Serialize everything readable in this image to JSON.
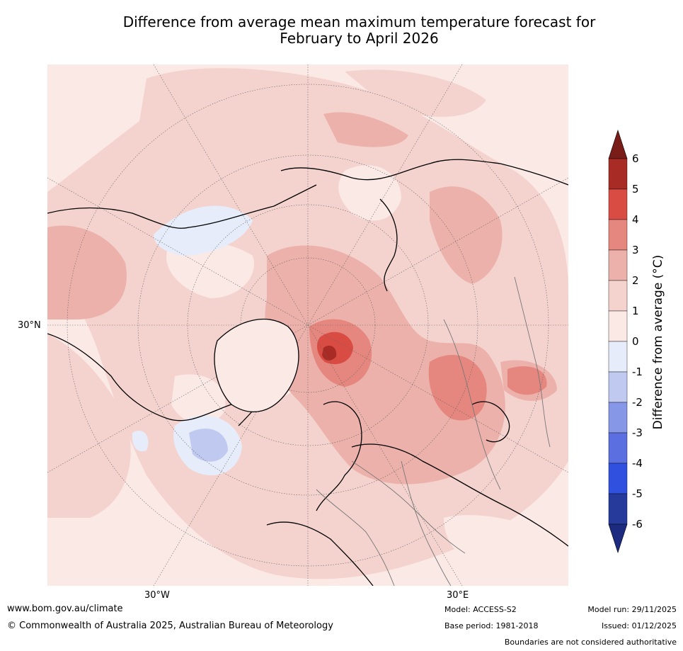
{
  "title_line1": "Difference from average mean maximum temperature forecast for",
  "title_line2": "February to April 2026",
  "map": {
    "lat_label": "30°N",
    "lon_labels": [
      "30°W",
      "30°E"
    ],
    "colors": {
      "c0_1": "#fbe9e6",
      "c1_2": "#f4d3cf",
      "c2_3": "#ecb1aa",
      "c3_4": "#e5877e",
      "c4_5": "#d94c44",
      "c5_6": "#a82c25",
      "cm0_1": "#e6ecfa",
      "cm1_2": "#c0c9f0",
      "land": "#000000"
    }
  },
  "colorbar": {
    "label": "Difference from average (°C)",
    "ticks": [
      "6",
      "5",
      "4",
      "3",
      "2",
      "1",
      "0",
      "-1",
      "-2",
      "-3",
      "-4",
      "-5",
      "-6"
    ],
    "colors": [
      "#7a1d18",
      "#a82c25",
      "#d94c44",
      "#e5877e",
      "#ecb1aa",
      "#f4d3cf",
      "#fbe9e6",
      "#e6ecfa",
      "#c0c9f0",
      "#8797e8",
      "#5b6fe0",
      "#3050e0",
      "#263a9c",
      "#1c2b80"
    ]
  },
  "footer": {
    "website": "www.bom.gov.au/climate",
    "copyright": "© Commonwealth of Australia 2025, Australian Bureau of Meteorology",
    "model": "Model: ACCESS-S2",
    "base_period": "Base period: 1981-2018",
    "model_run": "Model run: 29/11/2025",
    "issued": "Issued: 01/12/2025",
    "boundaries": "Boundaries are not considered authoritative"
  }
}
